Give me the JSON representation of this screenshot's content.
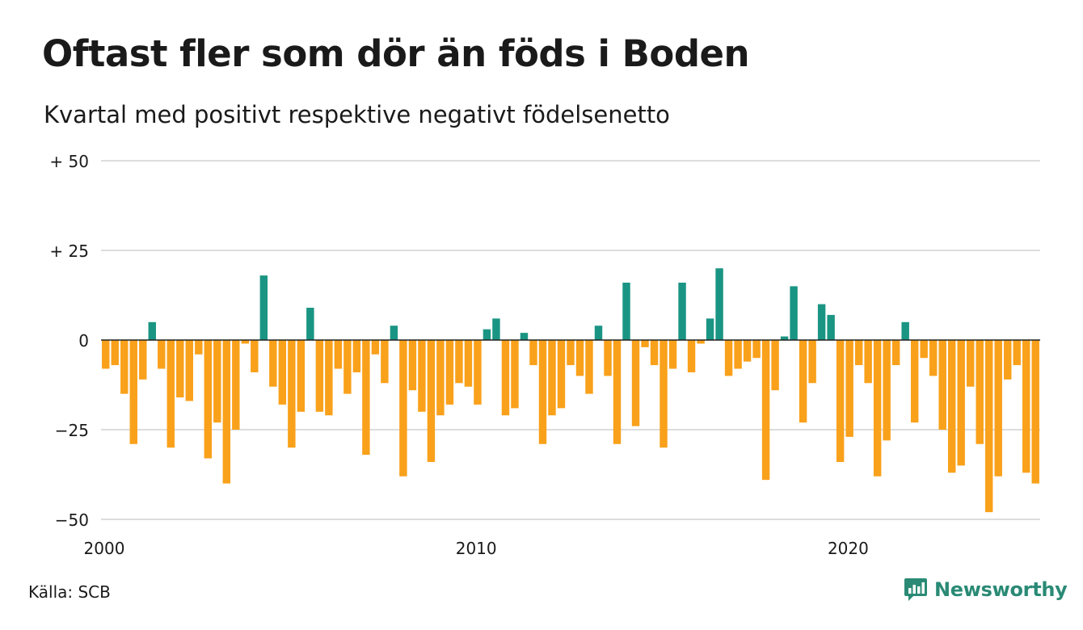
{
  "header": {
    "title": "Oftast fler som dör än föds i Boden",
    "subtitle": "Kvartal med positivt respektive negativt födelsenetto"
  },
  "footer": {
    "source": "Källa: SCB",
    "brand": "Newsworthy"
  },
  "colors": {
    "positive": "#1a9583",
    "negative": "#f9a11b",
    "grid": "#dddddd",
    "zero_line": "#222222",
    "text": "#1a1a1a",
    "brand": "#2a8a75"
  },
  "chart_data": {
    "type": "bar",
    "x_start": 2000,
    "frequency": "quarterly",
    "ylim": [
      -50,
      50
    ],
    "yticks": [
      {
        "value": 50,
        "label": "+ 50"
      },
      {
        "value": 25,
        "label": "+ 25"
      },
      {
        "value": 0,
        "label": "0"
      },
      {
        "value": -25,
        "label": "−25"
      },
      {
        "value": -50,
        "label": "−50"
      }
    ],
    "xticks": [
      {
        "value": 2000,
        "label": "2000"
      },
      {
        "value": 2010,
        "label": "2010"
      },
      {
        "value": 2020,
        "label": "2020"
      }
    ],
    "values": [
      -8,
      -7,
      -15,
      -29,
      -11,
      5,
      -8,
      -30,
      -16,
      -17,
      -4,
      -33,
      -23,
      -40,
      -25,
      -1,
      -9,
      18,
      -13,
      -18,
      -30,
      -20,
      9,
      -20,
      -21,
      -8,
      -15,
      -9,
      -32,
      -4,
      -12,
      4,
      -38,
      -14,
      -20,
      -34,
      -21,
      -18,
      -12,
      -13,
      -18,
      3,
      6,
      -21,
      -19,
      2,
      -7,
      -29,
      -21,
      -19,
      -7,
      -10,
      -15,
      4,
      -10,
      -29,
      16,
      -24,
      -2,
      -7,
      -30,
      -8,
      16,
      -9,
      -1,
      6,
      20,
      -10,
      -8,
      -6,
      -5,
      -39,
      -14,
      1,
      15,
      -23,
      -12,
      10,
      7,
      -34,
      -27,
      -7,
      -12,
      -38,
      -28,
      -7,
      5,
      -23,
      -5,
      -10,
      -25,
      -37,
      -35,
      -13,
      -29,
      -48,
      -38,
      -11,
      -7,
      -37,
      -40
    ]
  }
}
